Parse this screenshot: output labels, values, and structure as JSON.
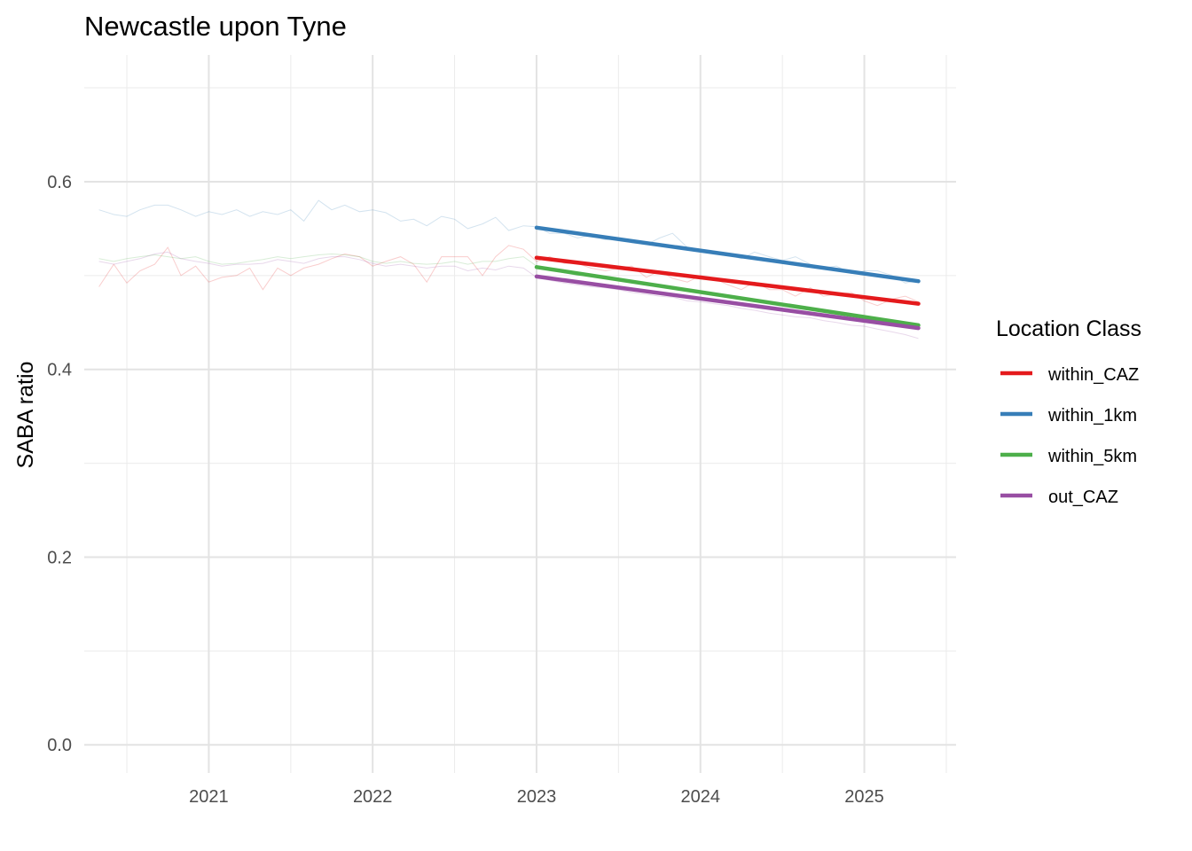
{
  "chart_data": {
    "type": "line",
    "title": "Newcastle upon Tyne",
    "xlabel": "",
    "ylabel": "SABA ratio",
    "xlim": [
      2020.24,
      2025.56
    ],
    "ylim": [
      -0.03,
      0.735
    ],
    "x_ticks": [
      2021,
      2022,
      2023,
      2024,
      2025
    ],
    "x_tick_labels": [
      "2021",
      "2022",
      "2023",
      "2024",
      "2025"
    ],
    "y_ticks": [
      0.0,
      0.2,
      0.4,
      0.6
    ],
    "y_tick_labels": [
      "0.0",
      "0.2",
      "0.4",
      "0.6"
    ],
    "grid": true,
    "legend": {
      "title": "Location Class",
      "placement": "right"
    },
    "series": [
      {
        "name": "within_CAZ",
        "color": "#E41A1C",
        "trend": {
          "x": [
            2023.0,
            2025.33
          ],
          "y": [
            0.519,
            0.47
          ]
        },
        "observed": {
          "x": [
            2020.33,
            2020.42,
            2020.5,
            2020.58,
            2020.67,
            2020.75,
            2020.83,
            2020.92,
            2021.0,
            2021.08,
            2021.17,
            2021.25,
            2021.33,
            2021.42,
            2021.5,
            2021.58,
            2021.67,
            2021.75,
            2021.83,
            2021.92,
            2022.0,
            2022.08,
            2022.17,
            2022.25,
            2022.33,
            2022.42,
            2022.5,
            2022.58,
            2022.67,
            2022.75,
            2022.83,
            2022.92,
            2023.0,
            2023.08,
            2023.17,
            2023.25,
            2023.33,
            2023.42,
            2023.5,
            2023.58,
            2023.67,
            2023.75,
            2023.83,
            2023.92,
            2024.0,
            2024.08,
            2024.17,
            2024.25,
            2024.33,
            2024.42,
            2024.5,
            2024.58,
            2024.67,
            2024.75,
            2024.83,
            2024.92,
            2025.0,
            2025.08,
            2025.17,
            2025.25,
            2025.33
          ],
          "y": [
            0.488,
            0.512,
            0.492,
            0.505,
            0.512,
            0.53,
            0.5,
            0.51,
            0.493,
            0.498,
            0.5,
            0.508,
            0.485,
            0.508,
            0.5,
            0.508,
            0.512,
            0.518,
            0.523,
            0.52,
            0.51,
            0.515,
            0.52,
            0.512,
            0.493,
            0.52,
            0.52,
            0.52,
            0.5,
            0.52,
            0.532,
            0.528,
            0.515,
            0.52,
            0.513,
            0.513,
            0.508,
            0.505,
            0.508,
            0.51,
            0.498,
            0.505,
            0.497,
            0.493,
            0.5,
            0.497,
            0.49,
            0.485,
            0.493,
            0.485,
            0.485,
            0.478,
            0.487,
            0.478,
            0.48,
            0.482,
            0.473,
            0.468,
            0.475,
            0.478,
            0.472
          ]
        }
      },
      {
        "name": "within_1km",
        "color": "#377EB8",
        "trend": {
          "x": [
            2023.0,
            2025.33
          ],
          "y": [
            0.551,
            0.494
          ]
        },
        "observed": {
          "x": [
            2020.33,
            2020.42,
            2020.5,
            2020.58,
            2020.67,
            2020.75,
            2020.83,
            2020.92,
            2021.0,
            2021.08,
            2021.17,
            2021.25,
            2021.33,
            2021.42,
            2021.5,
            2021.58,
            2021.67,
            2021.75,
            2021.83,
            2021.92,
            2022.0,
            2022.08,
            2022.17,
            2022.25,
            2022.33,
            2022.42,
            2022.5,
            2022.58,
            2022.67,
            2022.75,
            2022.83,
            2022.92,
            2023.0,
            2023.08,
            2023.17,
            2023.25,
            2023.33,
            2023.42,
            2023.5,
            2023.58,
            2023.67,
            2023.75,
            2023.83,
            2023.92,
            2024.0,
            2024.08,
            2024.17,
            2024.25,
            2024.33,
            2024.42,
            2024.5,
            2024.58,
            2024.67,
            2024.75,
            2024.83,
            2024.92,
            2025.0,
            2025.08,
            2025.17,
            2025.25,
            2025.33
          ],
          "y": [
            0.57,
            0.565,
            0.563,
            0.57,
            0.575,
            0.575,
            0.57,
            0.563,
            0.568,
            0.565,
            0.57,
            0.563,
            0.568,
            0.565,
            0.57,
            0.558,
            0.58,
            0.57,
            0.575,
            0.568,
            0.57,
            0.567,
            0.558,
            0.56,
            0.553,
            0.563,
            0.56,
            0.55,
            0.555,
            0.562,
            0.548,
            0.553,
            0.552,
            0.545,
            0.545,
            0.54,
            0.543,
            0.538,
            0.54,
            0.535,
            0.533,
            0.54,
            0.545,
            0.53,
            0.528,
            0.525,
            0.522,
            0.518,
            0.525,
            0.52,
            0.516,
            0.52,
            0.512,
            0.508,
            0.51,
            0.502,
            0.505,
            0.505,
            0.5,
            0.492,
            0.495
          ]
        }
      },
      {
        "name": "within_5km",
        "color": "#4DAF4A",
        "trend": {
          "x": [
            2023.0,
            2025.33
          ],
          "y": [
            0.509,
            0.447
          ]
        },
        "observed": {
          "x": [
            2020.33,
            2020.42,
            2020.5,
            2020.58,
            2020.67,
            2020.75,
            2020.83,
            2020.92,
            2021.0,
            2021.08,
            2021.17,
            2021.25,
            2021.33,
            2021.42,
            2021.5,
            2021.58,
            2021.67,
            2021.75,
            2021.83,
            2021.92,
            2022.0,
            2022.08,
            2022.17,
            2022.25,
            2022.33,
            2022.42,
            2022.5,
            2022.58,
            2022.67,
            2022.75,
            2022.83,
            2022.92,
            2023.0,
            2023.08,
            2023.17,
            2023.25,
            2023.33,
            2023.42,
            2023.5,
            2023.58,
            2023.67,
            2023.75,
            2023.83,
            2023.92,
            2024.0,
            2024.08,
            2024.17,
            2024.25,
            2024.33,
            2024.42,
            2024.5,
            2024.58,
            2024.67,
            2024.75,
            2024.83,
            2024.92,
            2025.0,
            2025.08,
            2025.17,
            2025.25,
            2025.33
          ],
          "y": [
            0.518,
            0.515,
            0.518,
            0.52,
            0.522,
            0.52,
            0.518,
            0.52,
            0.515,
            0.512,
            0.513,
            0.515,
            0.517,
            0.52,
            0.518,
            0.52,
            0.522,
            0.523,
            0.522,
            0.52,
            0.515,
            0.513,
            0.515,
            0.513,
            0.512,
            0.513,
            0.515,
            0.512,
            0.515,
            0.515,
            0.518,
            0.52,
            0.51,
            0.505,
            0.503,
            0.5,
            0.5,
            0.498,
            0.495,
            0.493,
            0.492,
            0.49,
            0.487,
            0.485,
            0.482,
            0.48,
            0.478,
            0.475,
            0.474,
            0.47,
            0.468,
            0.467,
            0.465,
            0.462,
            0.46,
            0.458,
            0.455,
            0.452,
            0.45,
            0.447,
            0.446
          ]
        }
      },
      {
        "name": "out_CAZ",
        "color": "#984EA3",
        "trend": {
          "x": [
            2023.0,
            2025.33
          ],
          "y": [
            0.499,
            0.444
          ]
        },
        "observed": {
          "x": [
            2020.33,
            2020.42,
            2020.5,
            2020.58,
            2020.67,
            2020.75,
            2020.83,
            2020.92,
            2021.0,
            2021.08,
            2021.17,
            2021.25,
            2021.33,
            2021.42,
            2021.5,
            2021.58,
            2021.67,
            2021.75,
            2021.83,
            2021.92,
            2022.0,
            2022.08,
            2022.17,
            2022.25,
            2022.33,
            2022.42,
            2022.5,
            2022.58,
            2022.67,
            2022.75,
            2022.83,
            2022.92,
            2023.0,
            2023.08,
            2023.17,
            2023.25,
            2023.33,
            2023.42,
            2023.5,
            2023.58,
            2023.67,
            2023.75,
            2023.83,
            2023.92,
            2024.0,
            2024.08,
            2024.17,
            2024.25,
            2024.33,
            2024.42,
            2024.5,
            2024.58,
            2024.67,
            2024.75,
            2024.83,
            2024.92,
            2025.0,
            2025.08,
            2025.17,
            2025.25,
            2025.33
          ],
          "y": [
            0.515,
            0.512,
            0.515,
            0.518,
            0.523,
            0.525,
            0.518,
            0.515,
            0.513,
            0.51,
            0.512,
            0.512,
            0.513,
            0.517,
            0.515,
            0.513,
            0.518,
            0.52,
            0.52,
            0.517,
            0.513,
            0.51,
            0.512,
            0.51,
            0.508,
            0.51,
            0.51,
            0.505,
            0.508,
            0.506,
            0.51,
            0.508,
            0.498,
            0.495,
            0.492,
            0.49,
            0.488,
            0.487,
            0.485,
            0.482,
            0.48,
            0.478,
            0.477,
            0.473,
            0.472,
            0.47,
            0.468,
            0.465,
            0.463,
            0.46,
            0.458,
            0.456,
            0.455,
            0.452,
            0.45,
            0.447,
            0.446,
            0.443,
            0.44,
            0.437,
            0.433
          ]
        }
      }
    ]
  }
}
